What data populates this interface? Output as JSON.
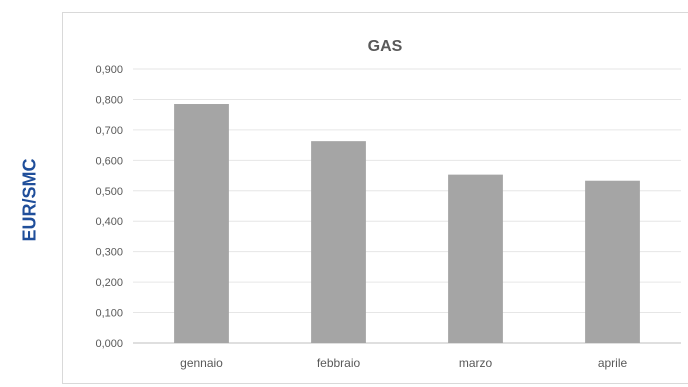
{
  "colors": {
    "bar": "#a5a5a5",
    "grid": "#e6e6e6",
    "axis": "#bfbfbf",
    "ylabel": "#1f4e9a",
    "text": "#595959"
  },
  "chart_data": {
    "type": "bar",
    "title": "GAS",
    "xlabel": "",
    "ylabel": "EUR/SMC",
    "categories": [
      "gennaio",
      "febbraio",
      "marzo",
      "aprile"
    ],
    "values": [
      0.785,
      0.663,
      0.553,
      0.533
    ],
    "ylim": [
      0,
      0.9
    ],
    "yticks": [
      0,
      0.1,
      0.2,
      0.3,
      0.4,
      0.5,
      0.6,
      0.7,
      0.8,
      0.9
    ],
    "ytick_labels": [
      "0,000",
      "0,100",
      "0,200",
      "0,300",
      "0,400",
      "0,500",
      "0,600",
      "0,700",
      "0,800",
      "0,900"
    ],
    "grid": true,
    "legend": "none"
  }
}
